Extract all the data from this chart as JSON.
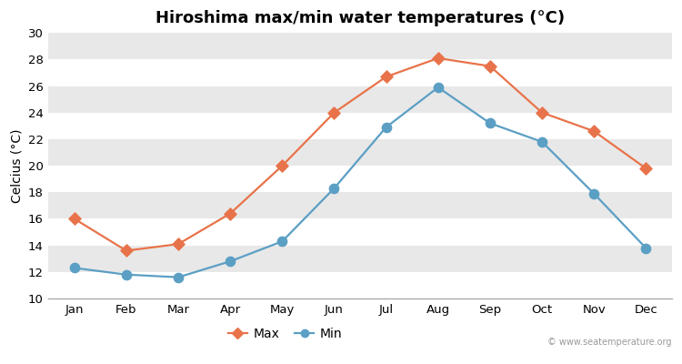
{
  "months": [
    "Jan",
    "Feb",
    "Mar",
    "Apr",
    "May",
    "Jun",
    "Jul",
    "Aug",
    "Sep",
    "Oct",
    "Nov",
    "Dec"
  ],
  "max_temps": [
    16.0,
    13.6,
    14.1,
    16.4,
    20.0,
    24.0,
    26.7,
    28.1,
    27.5,
    24.0,
    22.6,
    19.8
  ],
  "min_temps": [
    12.3,
    11.8,
    11.6,
    12.8,
    14.3,
    18.3,
    22.9,
    25.9,
    23.2,
    21.8,
    17.9,
    13.8
  ],
  "max_color": "#e8734a",
  "min_color": "#5b9fc4",
  "title": "Hiroshima max/min water temperatures (°C)",
  "ylabel": "Celcius (°C)",
  "ylim": [
    10,
    30
  ],
  "yticks": [
    10,
    12,
    14,
    16,
    18,
    20,
    22,
    24,
    26,
    28,
    30
  ],
  "band_colors": [
    "#ffffff",
    "#e8e8e8"
  ],
  "outer_bg": "#ffffff",
  "watermark": "© www.seatemperature.org",
  "legend_max": "Max",
  "legend_min": "Min",
  "title_fontsize": 13,
  "label_fontsize": 10,
  "tick_fontsize": 9.5
}
